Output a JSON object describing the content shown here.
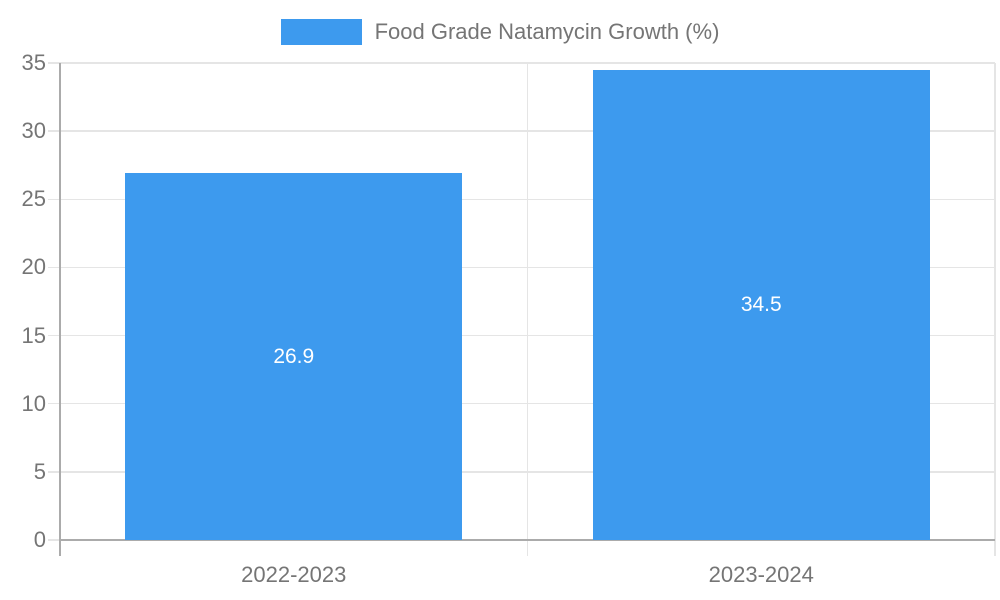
{
  "chart_data": {
    "type": "bar",
    "title": "Food Grade Natamycin Growth (%)",
    "legend": {
      "label": "Food Grade Natamycin Growth (%)",
      "position": "top"
    },
    "categories": [
      "2022-2023",
      "2023-2024"
    ],
    "values": [
      26.9,
      34.5
    ],
    "value_labels": [
      "26.9",
      "34.5"
    ],
    "xlabel": "",
    "ylabel": "",
    "ylim": [
      0,
      35
    ],
    "yticks": [
      0,
      5,
      10,
      15,
      20,
      25,
      30,
      35
    ],
    "ytick_labels": [
      "0",
      "5",
      "10",
      "15",
      "20",
      "25",
      "30",
      "35"
    ],
    "grid": true,
    "colors": {
      "bar": "#3D9AEE",
      "grid": "#E5E5E5",
      "axis": "#ABABAB",
      "text": "#757575",
      "value_text": "#FFFFFF",
      "background": "#FFFFFF"
    }
  }
}
